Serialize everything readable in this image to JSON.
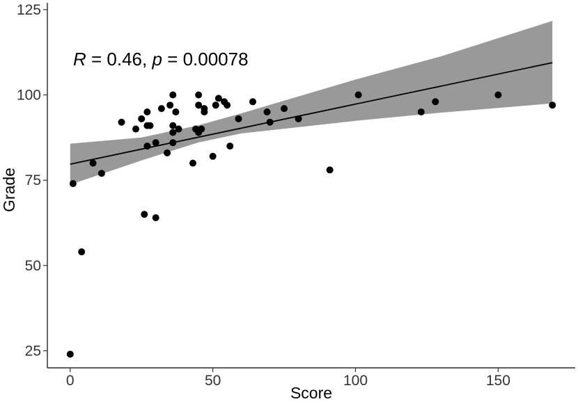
{
  "chart_data": {
    "type": "scatter",
    "title": "",
    "xlabel": "Score",
    "ylabel": "Grade",
    "xlim": [
      -8,
      177
    ],
    "ylim": [
      20,
      127
    ],
    "x_ticks": [
      0,
      50,
      100,
      150
    ],
    "y_ticks": [
      25,
      50,
      75,
      100,
      125
    ],
    "grid": false,
    "annotation": {
      "r_symbol": "R",
      "r_text": " = 0.46, ",
      "p_symbol": "p",
      "p_text": " = 0.00078",
      "position": "top-left"
    },
    "regression": {
      "x_start": 0,
      "x_end": 169,
      "intercept": 79.7,
      "slope": 0.176,
      "ci_lower": [
        [
          0,
          73.7
        ],
        [
          25,
          80.8
        ],
        [
          45,
          86.1
        ],
        [
          60,
          88.7
        ],
        [
          100,
          92.4
        ],
        [
          130,
          94.8
        ],
        [
          169,
          97.5
        ]
      ],
      "ci_upper": [
        [
          0,
          85.7
        ],
        [
          25,
          87.5
        ],
        [
          45,
          91.1
        ],
        [
          60,
          94.6
        ],
        [
          100,
          104.5
        ],
        [
          130,
          111.3
        ],
        [
          169,
          121.7
        ]
      ]
    },
    "points": [
      {
        "x": 0,
        "y": 24
      },
      {
        "x": 1,
        "y": 74
      },
      {
        "x": 4,
        "y": 54
      },
      {
        "x": 8,
        "y": 80
      },
      {
        "x": 11,
        "y": 77
      },
      {
        "x": 18,
        "y": 92
      },
      {
        "x": 23,
        "y": 90
      },
      {
        "x": 25,
        "y": 93
      },
      {
        "x": 26,
        "y": 65
      },
      {
        "x": 27,
        "y": 95
      },
      {
        "x": 27,
        "y": 85
      },
      {
        "x": 27,
        "y": 91
      },
      {
        "x": 28,
        "y": 91
      },
      {
        "x": 30,
        "y": 86
      },
      {
        "x": 30,
        "y": 64
      },
      {
        "x": 32,
        "y": 96
      },
      {
        "x": 34,
        "y": 83
      },
      {
        "x": 35,
        "y": 97
      },
      {
        "x": 36,
        "y": 100
      },
      {
        "x": 36,
        "y": 91
      },
      {
        "x": 36,
        "y": 89
      },
      {
        "x": 36,
        "y": 86
      },
      {
        "x": 37,
        "y": 95
      },
      {
        "x": 38,
        "y": 90
      },
      {
        "x": 43,
        "y": 80
      },
      {
        "x": 44,
        "y": 90
      },
      {
        "x": 45,
        "y": 100
      },
      {
        "x": 45,
        "y": 97
      },
      {
        "x": 45,
        "y": 89
      },
      {
        "x": 46,
        "y": 90
      },
      {
        "x": 47,
        "y": 96
      },
      {
        "x": 47,
        "y": 95
      },
      {
        "x": 50,
        "y": 82
      },
      {
        "x": 51,
        "y": 97
      },
      {
        "x": 52,
        "y": 99
      },
      {
        "x": 54,
        "y": 98
      },
      {
        "x": 55,
        "y": 97
      },
      {
        "x": 56,
        "y": 85
      },
      {
        "x": 59,
        "y": 93
      },
      {
        "x": 64,
        "y": 98
      },
      {
        "x": 69,
        "y": 95
      },
      {
        "x": 70,
        "y": 92
      },
      {
        "x": 75,
        "y": 96
      },
      {
        "x": 80,
        "y": 93
      },
      {
        "x": 91,
        "y": 78
      },
      {
        "x": 101,
        "y": 100
      },
      {
        "x": 123,
        "y": 95
      },
      {
        "x": 128,
        "y": 98
      },
      {
        "x": 150,
        "y": 100
      },
      {
        "x": 169,
        "y": 97
      }
    ],
    "colors": {
      "point": "#000000",
      "line": "#000000",
      "ribbon": "#999999",
      "axis": "#000000"
    }
  }
}
